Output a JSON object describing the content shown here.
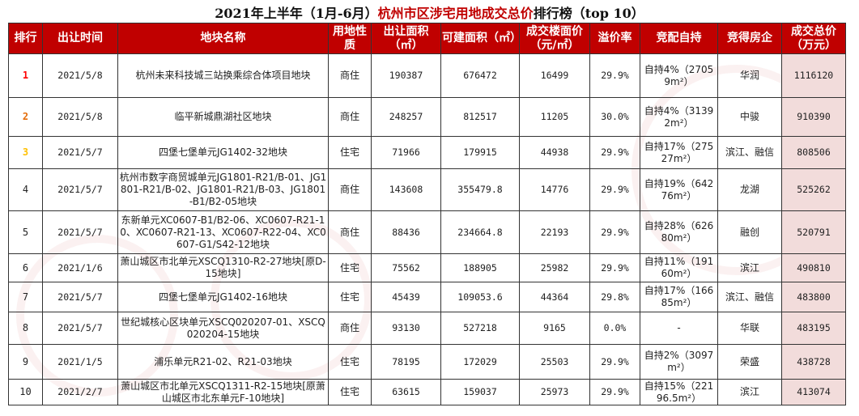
{
  "title": {
    "part1": "2021年上半年（1月-6月）",
    "part2": "杭州市区涉宅用地成交总价",
    "part3": "排行榜（top 10）"
  },
  "colors": {
    "header_bg": "#c00000",
    "total_bg": "#f2dcdb",
    "rank1": "#ff0000",
    "rank2": "#e46c0a",
    "rank3": "#ffc000"
  },
  "headers": [
    "排行",
    "出让时间",
    "地块名称",
    "用地性质",
    "出让面积（㎡）",
    "可建面积（㎡）",
    "成交楼面价（元/㎡）",
    "溢价率",
    "竞配自持",
    "竞得房企",
    "成交总价（万元）"
  ],
  "rows": [
    {
      "rank": "1",
      "date": "2021/5/8",
      "name": "杭州未来科技城三站换乘综合体项目地块",
      "type": "商住",
      "area": "190387",
      "build": "676472",
      "price": "16499",
      "premium": "29.9%",
      "hold": "自持4%（27059m²）",
      "company": "华润",
      "total": "1116120"
    },
    {
      "rank": "2",
      "date": "2021/5/8",
      "name": "临平新城鼎湖社区地块",
      "type": "商住",
      "area": "248257",
      "build": "812517",
      "price": "11205",
      "premium": "30.0%",
      "hold": "自持4%（31392m²）",
      "company": "中骏",
      "total": "910390"
    },
    {
      "rank": "3",
      "date": "2021/5/7",
      "name": "四堡七堡单元JG1402-32地块",
      "type": "住宅",
      "area": "71966",
      "build": "179915",
      "price": "44938",
      "premium": "29.9%",
      "hold": "自持17%（27527m²）",
      "company": "滨江、融信",
      "total": "808506"
    },
    {
      "rank": "4",
      "date": "2021/5/7",
      "name": "杭州市数字商贸城单元JG1801-R21/B-01、JG1801-R21/B-02、JG1801-R21/B-03、JG1801-B1/B2-05地块",
      "type": "商住",
      "area": "143608",
      "build": "355479.8",
      "price": "14776",
      "premium": "29.9%",
      "hold": "自持19%（64276m²）",
      "company": "龙湖",
      "total": "525262"
    },
    {
      "rank": "5",
      "date": "2021/5/7",
      "name": "东新单元XC0607-B1/B2-06、XC0607-R21-10、XC0607-R21-13、XC0607-R22-04、XC0607-G1/S42-12地块",
      "type": "商住",
      "area": "88436",
      "build": "234664.8",
      "price": "22193",
      "premium": "29.9%",
      "hold": "自持28%（62680m²）",
      "company": "融创",
      "total": "520791"
    },
    {
      "rank": "6",
      "date": "2021/1/6",
      "name": "萧山城区市北单元XSCQ1310-R2-27地块[原D-15地块]",
      "type": "住宅",
      "area": "75562",
      "build": "188905",
      "price": "25982",
      "premium": "29.9%",
      "hold": "自持11%（19160m²）",
      "company": "滨江",
      "total": "490810"
    },
    {
      "rank": "7",
      "date": "2021/5/7",
      "name": "四堡七堡单元JG1402-16地块",
      "type": "住宅",
      "area": "45439",
      "build": "109053.6",
      "price": "44364",
      "premium": "29.8%",
      "hold": "自持17%（16685m²）",
      "company": "滨江、融信",
      "total": "483800"
    },
    {
      "rank": "8",
      "date": "2021/5/7",
      "name": "世纪城核心区块单元XSCQ020207-01、XSCQ020204-15地块",
      "type": "商住",
      "area": "93130",
      "build": "527218",
      "price": "9165",
      "premium": "0.0%",
      "hold": "-",
      "company": "华联",
      "total": "483195"
    },
    {
      "rank": "9",
      "date": "2021/1/5",
      "name": "浦乐单元R21-02、R21-03地块",
      "type": "住宅",
      "area": "78195",
      "build": "172029",
      "price": "25503",
      "premium": "29.9%",
      "hold": "自持2%（3097m²）",
      "company": "荣盛",
      "total": "438728"
    },
    {
      "rank": "10",
      "date": "2021/2/7",
      "name": "萧山城区市北单元XSCQ1311-R2-15地块[原萧山城区市北东单元F-10地块]",
      "type": "住宅",
      "area": "63615",
      "build": "159037",
      "price": "25973",
      "premium": "29.9%",
      "hold": "自持15%（22196.5m²）",
      "company": "滨江",
      "total": "413074"
    }
  ]
}
